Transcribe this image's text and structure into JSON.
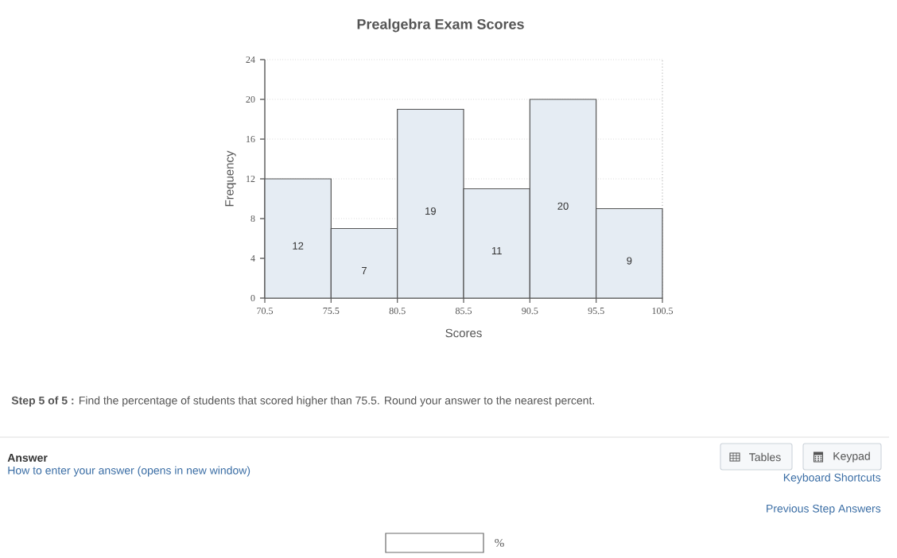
{
  "chart_data": {
    "type": "histogram",
    "title": "Prealgebra Exam Scores",
    "xlabel": "Scores",
    "ylabel": "Frequency",
    "bins": [
      70.5,
      75.5,
      80.5,
      85.5,
      90.5,
      95.5,
      100.5
    ],
    "values": [
      12,
      7,
      19,
      11,
      20,
      9
    ],
    "value_labels": [
      "12",
      "7",
      "19",
      "11",
      "20",
      "9"
    ],
    "color": "#e5ecf3",
    "xlim": [
      70.5,
      100.5
    ],
    "ylim": [
      0,
      24
    ],
    "xticks": [
      70.5,
      75.5,
      80.5,
      85.5,
      90.5,
      95.5,
      100.5
    ],
    "yticks": [
      0,
      4,
      8,
      12,
      16,
      20,
      24
    ],
    "grid": "y",
    "annotations": [
      "**Step 5 of 5 :** Find the percentage of students that scored higher than 75.5. Round your answer to the nearest percent.",
      "Answer",
      "How to enter your answer (opens in new window)",
      "Tables",
      "Keypad",
      "Keyboard Shortcuts",
      "Previous Step Answers",
      "%"
    ]
  }
}
